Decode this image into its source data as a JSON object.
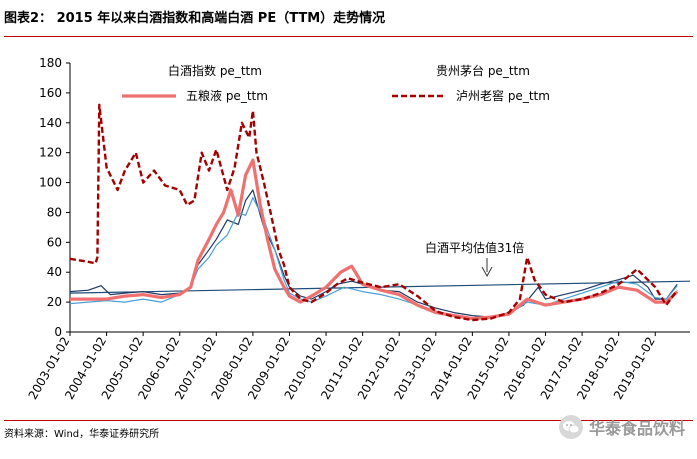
{
  "figure_label": "图表2：  2015 年以来白酒指数和高端白酒 PE（TTM）走势情况",
  "source": "资料来源：Wind，华泰证券研究所",
  "watermark": "华泰食品饮料",
  "annotation": "白酒平均估值31倍",
  "colors": {
    "rule": "#c00000",
    "baijiu_index": "#1f3864",
    "moutai": "#4a9fd5",
    "wuliangye": "#f07070",
    "luzhou": "#a50000",
    "avg_line": "#1f4e79"
  },
  "chart_data": {
    "type": "line",
    "title": "",
    "xlabel": "",
    "ylabel": "",
    "ylim": [
      0,
      180
    ],
    "yticks": [
      0,
      20,
      40,
      60,
      80,
      100,
      120,
      140,
      160,
      180
    ],
    "xticks": [
      "2003-01-02",
      "2004-01-02",
      "2005-01-02",
      "2006-01-02",
      "2007-01-02",
      "2008-01-02",
      "2009-01-02",
      "2010-01-02",
      "2011-01-02",
      "2012-01-02",
      "2013-01-02",
      "2014-01-02",
      "2015-01-02",
      "2016-01-02",
      "2017-01-02",
      "2018-01-02",
      "2019-01-02"
    ],
    "xlim": [
      2003.0,
      2019.95
    ],
    "grid": false,
    "legend_position": "top",
    "average_line": {
      "value": 31,
      "label": "白酒平均估值31倍",
      "start_value": 26,
      "end_value": 34
    },
    "series": [
      {
        "name": "白酒指数 pe_ttm",
        "style": "solid-thin",
        "x": [
          2003.0,
          2003.5,
          2003.85,
          2004.1,
          2004.5,
          2005.0,
          2005.5,
          2006.0,
          2006.3,
          2006.5,
          2006.8,
          2007.0,
          2007.3,
          2007.6,
          2007.8,
          2008.0,
          2008.3,
          2008.6,
          2008.85,
          2009.0,
          2009.3,
          2009.6,
          2010.0,
          2010.3,
          2010.7,
          2011.0,
          2011.5,
          2012.0,
          2012.5,
          2013.0,
          2013.5,
          2014.0,
          2014.5,
          2015.0,
          2015.4,
          2015.8,
          2016.0,
          2016.5,
          2017.0,
          2017.5,
          2018.0,
          2018.4,
          2018.8,
          2019.0,
          2019.3,
          2019.6
        ],
        "values": [
          27,
          28,
          31,
          25,
          26,
          27,
          25,
          26,
          30,
          45,
          55,
          62,
          75,
          72,
          88,
          95,
          70,
          55,
          38,
          30,
          24,
          22,
          27,
          32,
          34,
          32,
          28,
          27,
          20,
          16,
          13,
          11,
          10,
          13,
          18,
          30,
          22,
          25,
          28,
          32,
          35,
          38,
          30,
          22,
          22,
          32
        ]
      },
      {
        "name": "贵州茅台 pe_ttm",
        "style": "solid-thin",
        "x": [
          2003.0,
          2003.5,
          2004.0,
          2004.5,
          2005.0,
          2005.5,
          2006.0,
          2006.3,
          2006.5,
          2006.8,
          2007.0,
          2007.3,
          2007.6,
          2007.8,
          2008.0,
          2008.3,
          2008.6,
          2008.85,
          2009.0,
          2009.3,
          2009.6,
          2010.0,
          2010.5,
          2011.0,
          2011.5,
          2012.0,
          2012.5,
          2013.0,
          2013.5,
          2014.0,
          2014.5,
          2015.0,
          2015.5,
          2016.0,
          2016.5,
          2017.0,
          2017.5,
          2018.0,
          2018.5,
          2019.0,
          2019.3,
          2019.6
        ],
        "values": [
          19,
          20,
          21,
          20,
          22,
          20,
          25,
          30,
          42,
          50,
          58,
          65,
          80,
          78,
          90,
          75,
          55,
          35,
          26,
          22,
          20,
          24,
          30,
          27,
          25,
          22,
          18,
          14,
          11,
          9,
          10,
          12,
          20,
          18,
          22,
          26,
          30,
          34,
          32,
          23,
          22,
          31
        ]
      },
      {
        "name": "五粮液 pe_ttm",
        "style": "solid-thick",
        "x": [
          2003.0,
          2003.5,
          2004.0,
          2004.5,
          2005.0,
          2005.5,
          2006.0,
          2006.3,
          2006.5,
          2006.8,
          2007.0,
          2007.2,
          2007.4,
          2007.6,
          2007.8,
          2008.0,
          2008.2,
          2008.4,
          2008.6,
          2008.85,
          2009.0,
          2009.3,
          2009.6,
          2010.0,
          2010.4,
          2010.7,
          2011.0,
          2011.5,
          2012.0,
          2012.5,
          2013.0,
          2013.5,
          2014.0,
          2014.5,
          2015.0,
          2015.5,
          2016.0,
          2016.5,
          2017.0,
          2017.5,
          2018.0,
          2018.5,
          2019.0,
          2019.3,
          2019.6
        ],
        "values": [
          22,
          22,
          22,
          24,
          25,
          23,
          25,
          30,
          48,
          62,
          72,
          80,
          95,
          78,
          105,
          115,
          85,
          62,
          42,
          30,
          24,
          20,
          24,
          30,
          40,
          44,
          32,
          28,
          25,
          18,
          13,
          11,
          9,
          10,
          12,
          22,
          18,
          20,
          22,
          25,
          30,
          28,
          20,
          20,
          27
        ]
      },
      {
        "name": "泸州老窖 pe_ttm",
        "style": "dashed",
        "x": [
          2003.0,
          2003.5,
          2003.7,
          2003.75,
          2003.8,
          2004.0,
          2004.3,
          2004.5,
          2004.8,
          2005.0,
          2005.3,
          2005.6,
          2006.0,
          2006.2,
          2006.4,
          2006.6,
          2006.8,
          2007.0,
          2007.3,
          2007.5,
          2007.7,
          2007.9,
          2008.0,
          2008.1,
          2008.3,
          2008.5,
          2008.7,
          2008.85,
          2009.0,
          2009.3,
          2009.6,
          2010.0,
          2010.3,
          2010.6,
          2011.0,
          2011.5,
          2012.0,
          2012.5,
          2013.0,
          2013.5,
          2014.0,
          2014.5,
          2015.0,
          2015.3,
          2015.5,
          2015.7,
          2016.0,
          2016.5,
          2017.0,
          2017.5,
          2018.0,
          2018.5,
          2019.0,
          2019.3,
          2019.6
        ],
        "values": [
          49,
          47,
          46,
          50,
          152,
          110,
          95,
          108,
          120,
          100,
          108,
          98,
          95,
          85,
          88,
          120,
          108,
          122,
          95,
          110,
          140,
          130,
          148,
          120,
          100,
          78,
          55,
          45,
          30,
          22,
          20,
          26,
          32,
          36,
          33,
          30,
          32,
          24,
          14,
          10,
          8,
          9,
          13,
          22,
          50,
          35,
          25,
          20,
          22,
          26,
          32,
          42,
          30,
          18,
          28
        ]
      }
    ]
  }
}
